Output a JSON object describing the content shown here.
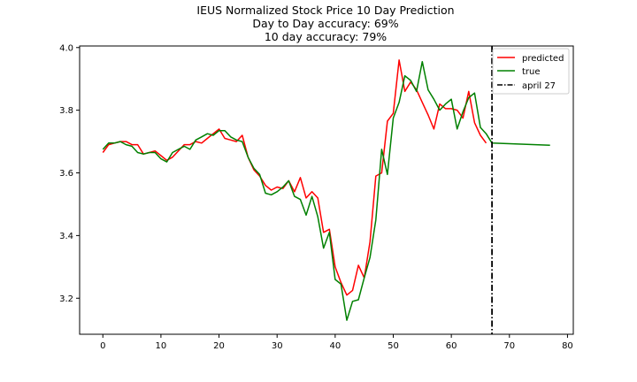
{
  "chart_data": {
    "type": "line",
    "title": [
      "IEUS Normalized Stock Price 10 Day Prediction",
      "Day to Day accuracy: 69%",
      "10 day accuracy: 79%"
    ],
    "xlabel": "",
    "ylabel": "",
    "xlim": [
      -4,
      81
    ],
    "ylim": [
      3.085,
      4.005
    ],
    "xticks": [
      0,
      10,
      20,
      30,
      40,
      50,
      60,
      70,
      80
    ],
    "yticks": [
      3.2,
      3.4,
      3.6,
      3.8,
      4.0
    ],
    "ytick_labels": [
      "3.2",
      "3.4",
      "3.6",
      "3.8",
      "4.0"
    ],
    "grid": false,
    "legend_position": "top-right",
    "series": [
      {
        "name": "predicted",
        "color": "#ff0000",
        "style": "solid",
        "x": [
          0,
          1,
          2,
          3,
          4,
          5,
          6,
          7,
          8,
          9,
          10,
          11,
          12,
          13,
          14,
          15,
          16,
          17,
          18,
          19,
          20,
          21,
          22,
          23,
          24,
          25,
          26,
          27,
          28,
          29,
          30,
          31,
          32,
          33,
          34,
          35,
          36,
          37,
          38,
          39,
          40,
          41,
          42,
          43,
          44,
          45,
          46,
          47,
          48,
          49,
          50,
          51,
          52,
          53,
          54,
          55,
          56,
          57,
          58,
          59,
          60,
          61,
          62,
          63,
          64,
          65,
          66,
          67
        ],
        "y": [
          3.665,
          3.69,
          3.695,
          3.7,
          3.7,
          3.69,
          3.69,
          3.66,
          3.665,
          3.67,
          3.655,
          3.64,
          3.65,
          3.67,
          3.69,
          3.69,
          3.7,
          3.695,
          3.71,
          3.725,
          3.74,
          3.71,
          3.705,
          3.7,
          3.72,
          3.65,
          3.61,
          3.59,
          3.56,
          3.545,
          3.555,
          3.55,
          3.575,
          3.54,
          3.585,
          3.52,
          3.54,
          3.52,
          3.41,
          3.42,
          3.3,
          3.25,
          3.21,
          3.225,
          3.305,
          3.265,
          3.38,
          3.59,
          3.6,
          3.765,
          3.79,
          3.96,
          3.86,
          3.89,
          3.865,
          3.825,
          3.785,
          3.74,
          3.82,
          3.805,
          3.805,
          3.8,
          3.775,
          3.86,
          3.76,
          3.72,
          3.695,
          null
        ]
      },
      {
        "name": "true",
        "color": "#008000",
        "style": "solid",
        "x": [
          0,
          1,
          2,
          3,
          4,
          5,
          6,
          7,
          8,
          9,
          10,
          11,
          12,
          13,
          14,
          15,
          16,
          17,
          18,
          19,
          20,
          21,
          22,
          23,
          24,
          25,
          26,
          27,
          28,
          29,
          30,
          31,
          32,
          33,
          34,
          35,
          36,
          37,
          38,
          39,
          40,
          41,
          42,
          43,
          44,
          45,
          46,
          47,
          48,
          49,
          50,
          51,
          52,
          53,
          54,
          55,
          56,
          57,
          58,
          59,
          60,
          61,
          62,
          63,
          64,
          65,
          66,
          67,
          77
        ],
        "y": [
          3.675,
          3.695,
          3.695,
          3.7,
          3.69,
          3.685,
          3.665,
          3.66,
          3.665,
          3.665,
          3.645,
          3.635,
          3.665,
          3.675,
          3.685,
          3.675,
          3.705,
          3.715,
          3.725,
          3.72,
          3.735,
          3.735,
          3.715,
          3.705,
          3.7,
          3.65,
          3.615,
          3.595,
          3.535,
          3.53,
          3.54,
          3.555,
          3.575,
          3.525,
          3.515,
          3.465,
          3.525,
          3.46,
          3.36,
          3.41,
          3.26,
          3.245,
          3.13,
          3.19,
          3.195,
          3.265,
          3.33,
          3.45,
          3.675,
          3.595,
          3.775,
          3.825,
          3.91,
          3.895,
          3.86,
          3.955,
          3.865,
          3.835,
          3.8,
          3.82,
          3.835,
          3.74,
          3.795,
          3.84,
          3.855,
          3.745,
          3.725,
          3.695,
          3.688
        ]
      }
    ],
    "vline": {
      "name": "april 27",
      "x": 67,
      "color": "#000000",
      "style": "dashdot"
    },
    "legend": [
      "predicted",
      "true",
      "april 27"
    ]
  }
}
